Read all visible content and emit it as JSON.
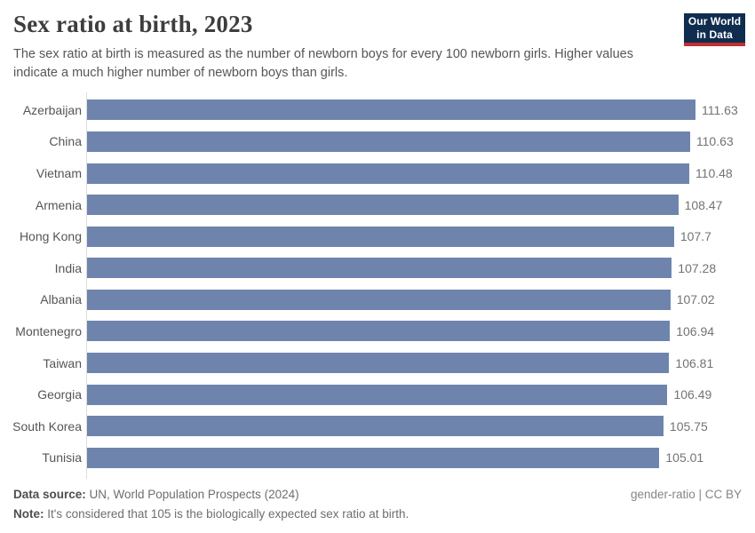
{
  "header": {
    "title": "Sex ratio at birth, 2023",
    "subtitle": "The sex ratio at birth is measured as the number of newborn boys for every 100 newborn girls. Higher values indicate a much higher number of newborn boys than girls.",
    "logo": {
      "line1": "Our World",
      "line2": "in Data",
      "bg_color": "#102d50",
      "accent_color": "#c0302e"
    }
  },
  "chart_data": {
    "type": "bar",
    "orientation": "horizontal",
    "title": "Sex ratio at birth, 2023",
    "categories": [
      "Azerbaijan",
      "China",
      "Vietnam",
      "Armenia",
      "Hong Kong",
      "India",
      "Albania",
      "Montenegro",
      "Taiwan",
      "Georgia",
      "South Korea",
      "Tunisia"
    ],
    "values": [
      111.63,
      110.63,
      110.48,
      108.47,
      107.7,
      107.28,
      107.02,
      106.94,
      106.81,
      106.49,
      105.75,
      105.01
    ],
    "xlabel": "",
    "ylabel": "",
    "xlim": [
      0,
      111.63
    ],
    "grid": false,
    "value_labels": true,
    "bar_color": "#6e84ac",
    "axis_color": "#dedede"
  },
  "footer": {
    "source_label": "Data source:",
    "source_text": " UN, World Population Prospects (2024)",
    "note_label": "Note:",
    "note_text": " It's considered that 105 is the biologically expected sex ratio at birth.",
    "license": "gender-ratio | CC BY"
  }
}
